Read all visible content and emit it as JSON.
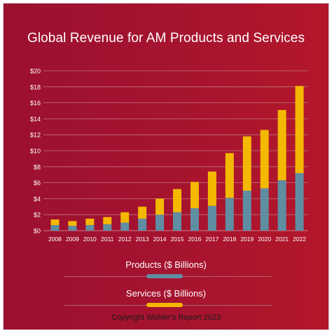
{
  "colors": {
    "products": "#5f8ea3",
    "services": "#f5b800"
  },
  "chart_data": {
    "type": "bar",
    "stacked": true,
    "title": "Global Revenue for AM Products and Services",
    "categories": [
      "2008",
      "2009",
      "2010",
      "2011",
      "2012",
      "2013",
      "2014",
      "2015",
      "2016",
      "2017",
      "2018",
      "2019",
      "2020",
      "2021",
      "2022"
    ],
    "series": [
      {
        "name": "Products ($ Billions)",
        "values": [
          0.7,
          0.6,
          0.7,
          0.8,
          1.0,
          1.5,
          2.0,
          2.3,
          2.8,
          3.1,
          4.1,
          5.0,
          5.3,
          6.3,
          7.2
        ]
      },
      {
        "name": "Services ($ Billions)",
        "values": [
          0.7,
          0.6,
          0.8,
          0.9,
          1.3,
          1.5,
          2.0,
          2.9,
          3.3,
          4.3,
          5.6,
          6.8,
          7.3,
          8.8,
          10.9
        ]
      }
    ],
    "yticks": [
      "$0",
      "$2",
      "$4",
      "$6",
      "$8",
      "$10",
      "$12",
      "$14",
      "$16",
      "$18",
      "$20"
    ],
    "ylim": [
      0,
      20
    ],
    "grid": true,
    "legend_position": "bottom"
  },
  "copyright": "Copyright Wohler's Report 2023"
}
